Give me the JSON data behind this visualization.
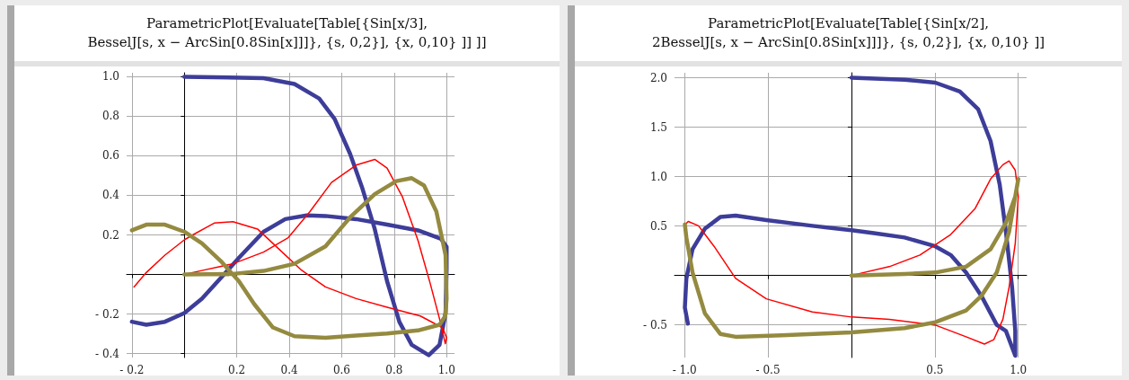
{
  "chart_data": [
    {
      "type": "line",
      "title": "ParametricPlot[Evaluate[Table[{Sin[x/3],\nBesselJ[s, x − ArcSin[0.8Sin[x]]]}, {s, 0,2}], {x, 0,10} ]] ]]",
      "xlim": [
        -0.22,
        1.03
      ],
      "ylim": [
        -0.42,
        1.02
      ],
      "xticks": [
        {
          "value": -0.2,
          "label": "- 0.2"
        },
        0.2,
        0.4,
        0.6,
        0.8,
        {
          "value": 1,
          "label": "1.0"
        }
      ],
      "yticks": [
        {
          "value": -0.4,
          "label": "- 0.4"
        },
        {
          "value": -0.2,
          "label": "- 0.2"
        },
        0.2,
        0.4,
        0.6,
        0.8,
        {
          "value": 1,
          "label": "1.0"
        }
      ],
      "grid": true,
      "series": [
        {
          "color": "#3d3d99",
          "x": [
            0,
            0.302,
            0.42,
            0.514,
            0.573,
            0.632,
            0.679,
            0.726,
            0.773,
            0.82,
            0.867,
            0.932,
            0.973,
            0.996,
            1.0,
            1.0,
            0.979,
            0.891,
            0.773,
            0.655,
            0.538,
            0.467,
            0.385,
            0.302,
            0.208,
            0.138,
            0.067,
            0,
            -0.074,
            -0.145,
            -0.2
          ],
          "values": [
            1.0,
            0.993,
            0.963,
            0.89,
            0.787,
            0.61,
            0.435,
            0.23,
            -0.034,
            -0.24,
            -0.356,
            -0.408,
            -0.356,
            -0.195,
            0.025,
            0.14,
            0.18,
            0.223,
            0.252,
            0.28,
            0.296,
            0.299,
            0.28,
            0.216,
            0.084,
            -0.019,
            -0.122,
            -0.195,
            -0.239,
            -0.254,
            -0.239
          ]
        },
        {
          "color": "#ff0000",
          "x": [
            0,
            0.067,
            0.185,
            0.302,
            0.396,
            0.479,
            0.561,
            0.655,
            0.726,
            0.773,
            0.832,
            0.891,
            0.938,
            0.973,
            0.995,
            1.0,
            0.985,
            0.95,
            0.9,
            0.773,
            0.655,
            0.538,
            0.444,
            0.373,
            0.279,
            0.185,
            0.114,
            0.032,
            0,
            -0.074,
            -0.145,
            -0.192
          ],
          "values": [
            0,
            0.02,
            0.054,
            0.113,
            0.186,
            0.318,
            0.465,
            0.553,
            0.582,
            0.538,
            0.391,
            0.172,
            -0.048,
            -0.224,
            -0.35,
            -0.32,
            -0.27,
            -0.245,
            -0.21,
            -0.166,
            -0.122,
            -0.063,
            0.025,
            0.113,
            0.23,
            0.267,
            0.26,
            0.2,
            0.175,
            0.098,
            0.01,
            -0.063
          ]
        },
        {
          "color": "#948a40",
          "x": [
            0,
            0.185,
            0.302,
            0.42,
            0.538,
            0.632,
            0.726,
            0.808,
            0.867,
            0.914,
            0.961,
            0.996,
            1.0,
            0.995,
            0.973,
            0.891,
            0.773,
            0.655,
            0.538,
            0.42,
            0.338,
            0.267,
            0.208,
            0.138,
            0.067,
            0,
            -0.074,
            -0.145,
            -0.2
          ],
          "values": [
            0,
            0.003,
            0.018,
            0.054,
            0.142,
            0.289,
            0.406,
            0.472,
            0.487,
            0.45,
            0.318,
            0.098,
            -0.122,
            -0.21,
            -0.254,
            -0.283,
            -0.298,
            -0.309,
            -0.32,
            -0.312,
            -0.268,
            -0.151,
            -0.034,
            0.069,
            0.157,
            0.216,
            0.252,
            0.252,
            0.223
          ]
        }
      ]
    },
    {
      "type": "line",
      "title": "ParametricPlot[Evaluate[Table[{Sin[x/2],\n2BesselJ[s, x − ArcSin[0.8Sin[x]]]}, {s, 0,2}], {x, 0,10} ]]",
      "xlim": [
        -1.06,
        1.05
      ],
      "ylim": [
        -0.83,
        2.05
      ],
      "xticks": [
        {
          "value": -1,
          "label": "- 1.0"
        },
        {
          "value": -0.5,
          "label": "- 0.5"
        },
        0.5,
        {
          "value": 1,
          "label": "1.0"
        }
      ],
      "yticks": [
        {
          "value": -0.5,
          "label": "- 0.5"
        },
        0.5,
        {
          "value": 1,
          "label": "1.0"
        },
        1.5,
        {
          "value": 2,
          "label": "2.0"
        }
      ],
      "grid": true,
      "series": [
        {
          "color": "#3d3d99",
          "x": [
            0,
            0.319,
            0.503,
            0.65,
            0.76,
            0.834,
            0.889,
            0.926,
            0.963,
            0.982,
            0.982,
            0.926,
            0.871,
            0.779,
            0.687,
            0.595,
            0.503,
            0.319,
            0.134,
            0,
            -0.234,
            -0.51,
            -0.694,
            -0.786,
            -0.878,
            -0.952,
            -0.989,
            -0.998,
            -0.98
          ],
          "values": [
            2.0,
            1.98,
            1.95,
            1.86,
            1.68,
            1.36,
            0.916,
            0.443,
            -0.118,
            -0.561,
            -0.812,
            -0.561,
            -0.5,
            -0.207,
            0.03,
            0.207,
            0.295,
            0.384,
            0.428,
            0.458,
            0.502,
            0.561,
            0.606,
            0.591,
            0.473,
            0.266,
            -0.03,
            -0.325,
            -0.487
          ]
        },
        {
          "color": "#ff0000",
          "x": [
            0,
            0.227,
            0.411,
            0.595,
            0.742,
            0.834,
            0.908,
            0.945,
            0.982,
            1.0,
            0.982,
            0.945,
            0.908,
            0.853,
            0.797,
            0.687,
            0.503,
            0.227,
            0,
            -0.234,
            -0.51,
            -0.694,
            -0.823,
            -0.916,
            -0.978,
            -0.994
          ],
          "values": [
            0,
            0.089,
            0.207,
            0.414,
            0.679,
            0.975,
            1.12,
            1.158,
            1.064,
            0.798,
            0.325,
            -0.118,
            -0.443,
            -0.65,
            -0.694,
            -0.62,
            -0.502,
            -0.443,
            -0.42,
            -0.369,
            -0.236,
            -0.03,
            0.295,
            0.502,
            0.546,
            0.517
          ]
        },
        {
          "color": "#948a40",
          "x": [
            0,
            0.319,
            0.503,
            0.687,
            0.834,
            0.926,
            0.982,
            1.0,
            0.945,
            0.871,
            0.779,
            0.687,
            0.503,
            0.319,
            0,
            -0.418,
            -0.694,
            -0.786,
            -0.878,
            -0.952,
            -0.989,
            -0.998
          ],
          "values": [
            0,
            0.015,
            0.03,
            0.089,
            0.266,
            0.532,
            0.798,
            0.975,
            0.443,
            0.03,
            -0.207,
            -0.355,
            -0.473,
            -0.532,
            -0.576,
            -0.606,
            -0.62,
            -0.591,
            -0.384,
            0.03,
            0.384,
            0.517
          ]
        }
      ]
    }
  ]
}
